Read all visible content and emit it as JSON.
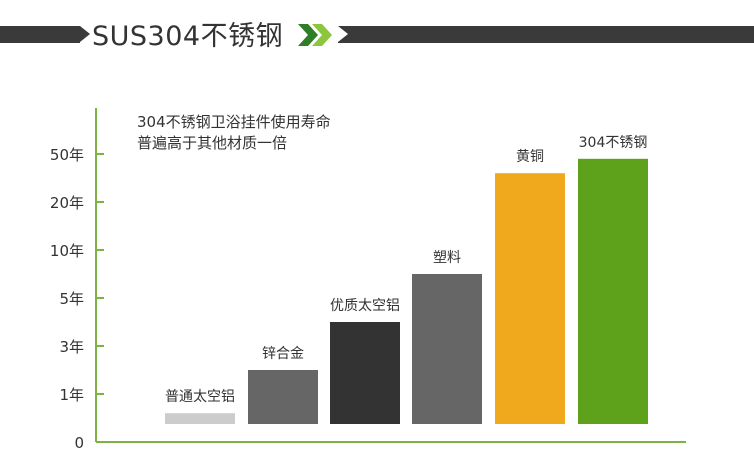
{
  "banner": {
    "title": "SUS304不锈钢",
    "colors": {
      "dark": "#3a3a3a",
      "chevron_dark": "#2f7d26",
      "chevron_light": "#8cc63f"
    }
  },
  "note": {
    "line1": "304不锈钢卫浴挂件使用寿命",
    "line2": "普遍高于其他材质一倍"
  },
  "chart_data": {
    "type": "bar",
    "title": "",
    "xlabel": "",
    "ylabel": "",
    "y_ticks": [
      "0",
      "1年",
      "3年",
      "5年",
      "10年",
      "20年",
      "50年"
    ],
    "categories": [
      "普通太空铝",
      "锌合金",
      "优质太空铝",
      "塑料",
      "黄铜",
      "304不锈钢"
    ],
    "values": [
      0.6,
      1.5,
      2.5,
      3.5,
      5.6,
      5.9
    ],
    "value_unit": "tick index",
    "bar_colors": [
      "#cccccc",
      "#666666",
      "#333333",
      "#666666",
      "#f0a81c",
      "#5ea21b"
    ],
    "axis_color": "#7cb342",
    "grid": false,
    "legend": "none"
  }
}
